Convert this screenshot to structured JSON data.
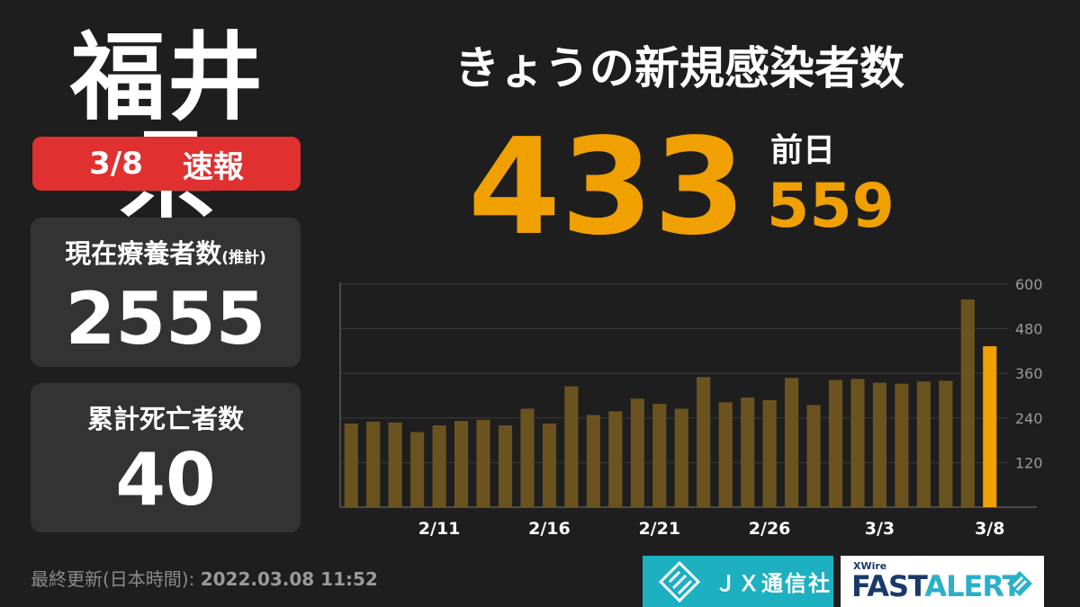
{
  "header": {
    "prefecture": "福井県",
    "date": "3/8",
    "flash_label": "速報",
    "headline": "きょうの新規感染者数"
  },
  "today": {
    "value": "433"
  },
  "previous": {
    "label": "前日",
    "value": "559"
  },
  "cards": {
    "under_care": {
      "label": "現在療養者数",
      "note": "(推計)",
      "value": "2555"
    },
    "deaths": {
      "label": "累計死亡者数",
      "value": "40"
    }
  },
  "footer": {
    "updated_label": "最終更新(日本時間):",
    "updated_time": "2022.03.08 11:52",
    "jx_name": "ＪＸ通信社",
    "fa_small": "XWire",
    "fa_fast": "FAST",
    "fa_alert": "ALERT"
  },
  "colors": {
    "accent": "#f0a000",
    "bar_past": "#6b5320",
    "badge": "#e03030",
    "card": "#333333",
    "background": "#1e1e1e"
  },
  "chart_data": {
    "type": "bar",
    "categories": [
      "2/7",
      "2/8",
      "2/9",
      "2/10",
      "2/11",
      "2/12",
      "2/13",
      "2/14",
      "2/15",
      "2/16",
      "2/17",
      "2/18",
      "2/19",
      "2/20",
      "2/21",
      "2/22",
      "2/23",
      "2/24",
      "2/25",
      "2/26",
      "2/27",
      "2/28",
      "3/1",
      "3/2",
      "3/3",
      "3/4",
      "3/5",
      "3/6",
      "3/7",
      "3/8"
    ],
    "values": [
      225,
      230,
      228,
      202,
      220,
      232,
      235,
      220,
      265,
      225,
      325,
      248,
      258,
      292,
      278,
      265,
      350,
      282,
      295,
      288,
      348,
      275,
      342,
      345,
      335,
      332,
      338,
      340,
      559,
      433
    ],
    "x_tick_labels": [
      "2/11",
      "2/16",
      "2/21",
      "2/26",
      "3/3",
      "3/8"
    ],
    "y_ticks": [
      120,
      240,
      360,
      480,
      600
    ],
    "ylim": [
      0,
      600
    ],
    "title": "",
    "xlabel": "",
    "ylabel": "",
    "grid": true,
    "y_axis_position": "right",
    "highlight_last": true
  }
}
